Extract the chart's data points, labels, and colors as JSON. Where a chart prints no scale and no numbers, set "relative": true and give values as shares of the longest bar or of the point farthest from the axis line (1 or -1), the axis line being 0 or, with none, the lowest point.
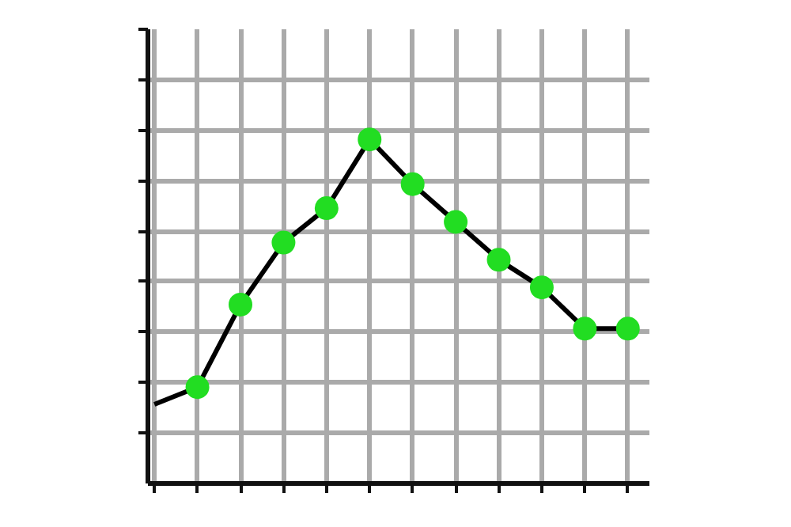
{
  "chart_data": {
    "type": "line",
    "relative": true,
    "grid": true,
    "marker": "circle",
    "categories": [
      null,
      null,
      null,
      null,
      null,
      null,
      null,
      null,
      null,
      null,
      null,
      null
    ],
    "series": [
      {
        "color": "#000000",
        "values": [
          0.23,
          0.28,
          0.52,
          0.7,
          0.8,
          1.0,
          0.87,
          0.76,
          0.65,
          0.57,
          0.45,
          0.45
        ],
        "colors": [
          null,
          "#22dd22",
          "#22dd22",
          "#22dd22",
          "#22dd22",
          "#22dd22",
          "#22dd22",
          "#22dd22",
          "#22dd22",
          "#22dd22",
          "#22dd22",
          "#22dd22"
        ]
      }
    ]
  }
}
